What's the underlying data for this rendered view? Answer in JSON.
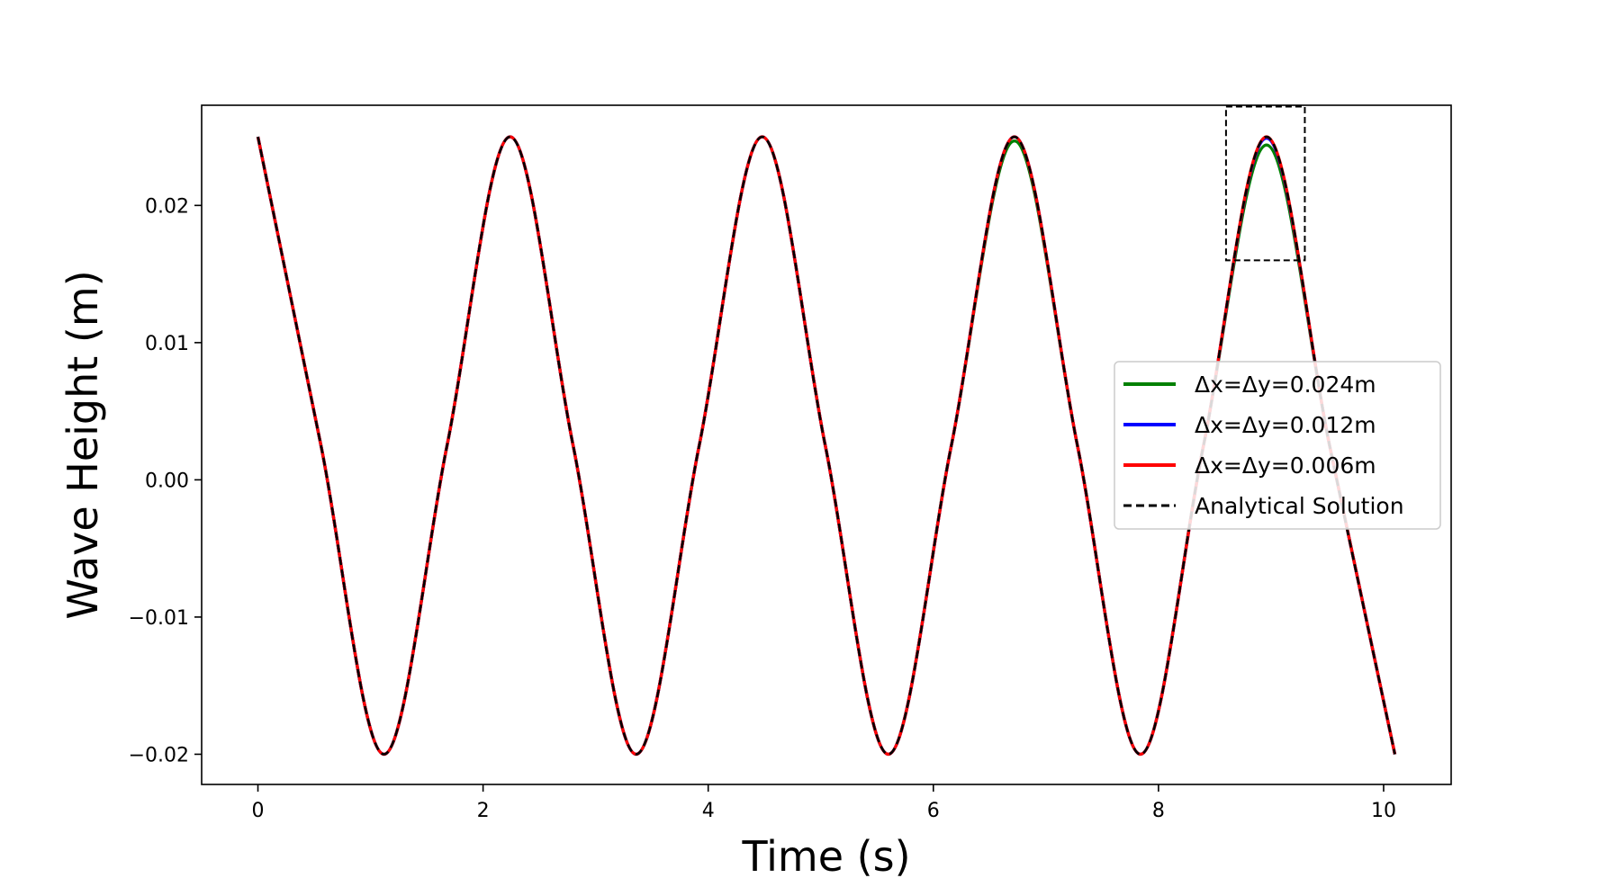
{
  "chart_data": {
    "type": "line",
    "title": "",
    "xlabel": "Time (s)",
    "ylabel": "Wave Height (m)",
    "xlim": [
      -0.5,
      10.6
    ],
    "ylim": [
      -0.0222,
      0.0273
    ],
    "x_ticks": [
      0,
      2,
      4,
      6,
      8,
      10
    ],
    "x_tick_labels": [
      "0",
      "2",
      "4",
      "6",
      "8",
      "10"
    ],
    "y_ticks": [
      -0.02,
      -0.01,
      0.0,
      0.01,
      0.02
    ],
    "y_tick_labels": [
      "−0.02",
      "−0.01",
      "0.00",
      "0.01",
      "0.02"
    ],
    "grid": false,
    "legend_position": "center-right",
    "series": [
      {
        "name": "Δx=Δy=0.024m",
        "color": "#008000",
        "style": "solid",
        "x": [
          0,
          0.56,
          1.12,
          1.68,
          2.24,
          2.8,
          3.36,
          3.92,
          4.48,
          5.04,
          5.6,
          6.16,
          6.72,
          7.28,
          7.84,
          8.4,
          8.96,
          9.52,
          10.1
        ],
        "y": [
          0.025,
          0.0025,
          -0.02,
          0.0025,
          0.025,
          0.0025,
          -0.02,
          0.0025,
          0.025,
          0.0025,
          -0.02,
          0.0025,
          0.0247,
          0.0025,
          -0.02,
          0.0025,
          0.0244,
          0.0025,
          -0.02
        ]
      },
      {
        "name": "Δx=Δy=0.012m",
        "color": "#0000ff",
        "style": "solid",
        "x": [
          0,
          0.56,
          1.12,
          1.68,
          2.24,
          2.8,
          3.36,
          3.92,
          4.48,
          5.04,
          5.6,
          6.16,
          6.72,
          7.28,
          7.84,
          8.4,
          8.96,
          9.52,
          10.1
        ],
        "y": [
          0.025,
          0.0025,
          -0.02,
          0.0025,
          0.025,
          0.0025,
          -0.02,
          0.0025,
          0.025,
          0.0025,
          -0.02,
          0.0025,
          0.025,
          0.0025,
          -0.02,
          0.0025,
          0.0249,
          0.0025,
          -0.02
        ]
      },
      {
        "name": "Δx=Δy=0.006m",
        "color": "#ff0000",
        "style": "solid",
        "x": [
          0,
          0.56,
          1.12,
          1.68,
          2.24,
          2.8,
          3.36,
          3.92,
          4.48,
          5.04,
          5.6,
          6.16,
          6.72,
          7.28,
          7.84,
          8.4,
          8.96,
          9.52,
          10.1
        ],
        "y": [
          0.025,
          0.0025,
          -0.02,
          0.0025,
          0.025,
          0.0025,
          -0.02,
          0.0025,
          0.025,
          0.0025,
          -0.02,
          0.0025,
          0.025,
          0.0025,
          -0.02,
          0.0025,
          0.025,
          0.0025,
          -0.02
        ]
      },
      {
        "name": "Analytical Solution",
        "color": "#000000",
        "style": "dashed",
        "x": [
          0,
          0.56,
          1.12,
          1.68,
          2.24,
          2.8,
          3.36,
          3.92,
          4.48,
          5.04,
          5.6,
          6.16,
          6.72,
          7.28,
          7.84,
          8.4,
          8.96,
          9.52,
          10.1
        ],
        "y": [
          0.025,
          0.0025,
          -0.02,
          0.0025,
          0.025,
          0.0025,
          -0.02,
          0.0025,
          0.025,
          0.0025,
          -0.02,
          0.0025,
          0.025,
          0.0025,
          -0.02,
          0.0025,
          0.025,
          0.0025,
          -0.02
        ]
      }
    ],
    "annotations": [
      {
        "type": "rect",
        "style": "dashed",
        "color": "#000000",
        "x_range": [
          8.6,
          9.3
        ],
        "y_range": [
          0.016,
          0.0272
        ]
      }
    ]
  }
}
